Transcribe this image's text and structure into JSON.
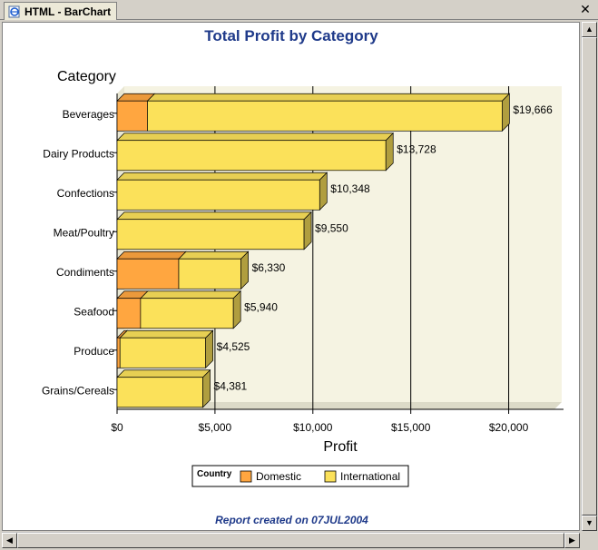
{
  "window": {
    "tab_label": "HTML - BarChart",
    "tab_icon": "ie-page-icon",
    "close_icon": "close-icon"
  },
  "footer": {
    "text": "Report created on 07JUL2004"
  },
  "colors": {
    "domestic": "#ffa640",
    "international": "#fbe15a",
    "plot_bg": "#f5f3e2",
    "title": "#1f3a8a"
  },
  "chart_data": {
    "type": "bar",
    "orientation": "horizontal",
    "stacked": true,
    "title": "Total Profit by Category",
    "ylabel": "Category",
    "xlabel": "Profit",
    "categories": [
      "Beverages",
      "Dairy Products",
      "Confections",
      "Meat/Poultry",
      "Condiments",
      "Seafood",
      "Produce",
      "Grains/Cereals"
    ],
    "series": [
      {
        "name": "Domestic",
        "values": [
          1550,
          0,
          0,
          0,
          3150,
          1200,
          150,
          0
        ]
      },
      {
        "name": "International",
        "values": [
          18116,
          13728,
          10348,
          9550,
          3180,
          4740,
          4375,
          4381
        ]
      }
    ],
    "totals": [
      19666,
      13728,
      10348,
      9550,
      6330,
      5940,
      4525,
      4381
    ],
    "data_labels": [
      "$19,666",
      "$13,728",
      "$10,348",
      "$9,550",
      "$6,330",
      "$5,940",
      "$4,525",
      "$4,381"
    ],
    "xticks": [
      0,
      5000,
      10000,
      15000,
      20000
    ],
    "xtick_labels": [
      "$0",
      "$5,000",
      "$10,000",
      "$15,000",
      "$20,000"
    ],
    "xlim": [
      0,
      22800
    ],
    "grid": true,
    "legend": {
      "title": "Country",
      "position": "bottom-center",
      "entries": [
        "Domestic",
        "International"
      ]
    }
  }
}
